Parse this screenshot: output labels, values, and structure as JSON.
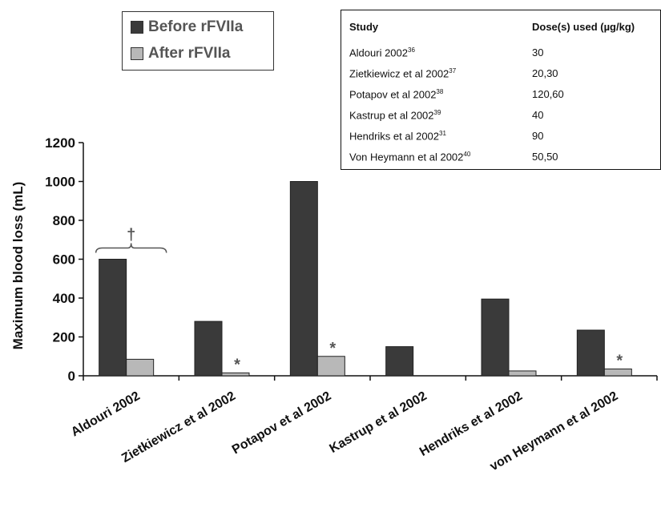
{
  "chart_data": {
    "type": "bar",
    "categories": [
      "Aldouri 2002",
      "Zietkiewicz et al 2002",
      "Potapov et al 2002",
      "Kastrup et al 2002",
      "Hendriks et al 2002",
      "von Heymann et al 2002"
    ],
    "series": [
      {
        "name": "Before rFVIIa",
        "values": [
          600,
          280,
          1000,
          150,
          395,
          235
        ],
        "color": "#3a3a3a"
      },
      {
        "name": "After rFVIIa",
        "values": [
          85,
          15,
          100,
          null,
          25,
          35
        ],
        "color": "#b8b8b8"
      }
    ],
    "ylabel": "Maximum blood loss (mL)",
    "xlabel": "",
    "ylim": [
      0,
      1200
    ],
    "yticks": [
      0,
      200,
      400,
      600,
      800,
      1000,
      1200
    ],
    "legend_position": "top-left",
    "grid": false,
    "annotations": [
      {
        "text": "†",
        "target": "Aldouri 2002",
        "note": "bracket over both bars"
      },
      {
        "text": "*",
        "target": "Zietkiewicz et al 2002"
      },
      {
        "text": "*",
        "target": "Potapov et al 2002"
      },
      {
        "text": "*",
        "target": "von Heymann et al 2002"
      }
    ]
  },
  "legend": {
    "before_label": "Before rFVIIa",
    "after_label": "After rFVIIa"
  },
  "study_table": {
    "col_study": "Study",
    "col_dose": "Dose(s) used (µg/kg)",
    "rows": [
      {
        "study": "Aldouri 2002",
        "ref": "36",
        "dose": "30"
      },
      {
        "study": "Zietkiewicz et al 2002",
        "ref": "37",
        "dose": "20,30"
      },
      {
        "study": "Potapov et al 2002",
        "ref": "38",
        "dose": "120,60"
      },
      {
        "study": "Kastrup et al 2002",
        "ref": "39",
        "dose": "40"
      },
      {
        "study": "Hendriks et al 2002",
        "ref": "31",
        "dose": "90"
      },
      {
        "study": "Von Heymann et al 2002",
        "ref": "40",
        "dose": "50,50"
      }
    ]
  }
}
